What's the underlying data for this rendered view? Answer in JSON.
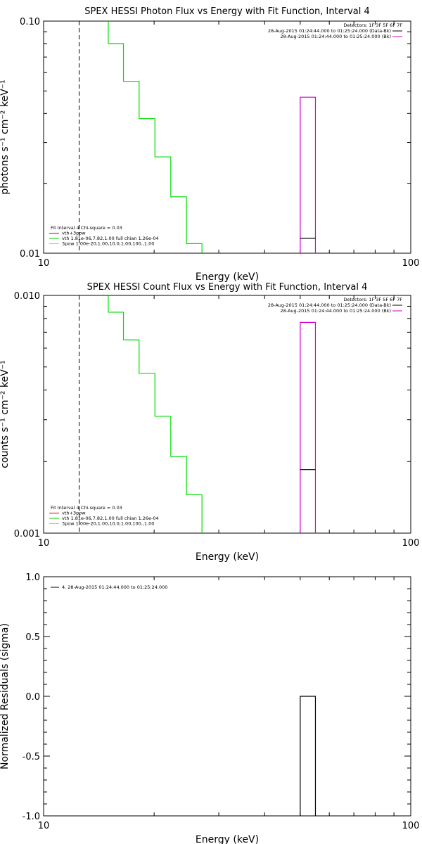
{
  "chart_data": [
    {
      "type": "step",
      "title": "SPEX HESSI Photon Flux vs Energy with Fit Function, Interval 4",
      "xlabel": "Energy (keV)",
      "ylabel": "photons s⁻¹ cm⁻² keV⁻¹",
      "x_scale": "log",
      "y_scale": "log",
      "xlim": [
        10,
        100
      ],
      "ylim": [
        0.01,
        0.1
      ],
      "x_tick_labels": [
        "10",
        "100"
      ],
      "y_tick_labels": [
        "0.01",
        "0.10"
      ],
      "legend_top_right": [
        {
          "text": "Detectors: 1F 3F 5F 6F 7F",
          "color": "#000000",
          "swatch": false
        },
        {
          "text": "28-Aug-2015 01:24:44.000 to 01:25:24.000 (Data-Bk)",
          "color": "#000000",
          "swatch": true
        },
        {
          "text": "28-Aug-2015 01:24:44.000 to 01:25:24.000 (Bk)",
          "color": "#cc00cc",
          "swatch": true
        }
      ],
      "legend_bottom_left": [
        {
          "text": "Fit Interval 4   Chi-square = 0.03",
          "color": "#000000",
          "swatch": false
        },
        {
          "text": "vth+3pow",
          "color": "#cc0000",
          "swatch": true
        },
        {
          "text": "vth 1.81e-06,7.82,1.00  full chian 1.26e-04",
          "color": "#00cc00",
          "swatch": true
        },
        {
          "text": "3pow 1.00e-20,1.00,10.0,1.00,100.,1.00",
          "color": "#cccc00",
          "swatch": true
        }
      ],
      "dashed_line_x": 12.5,
      "series": [
        {
          "color": "#00dd00",
          "style": "step",
          "x_edges": [
            15.0,
            16.5,
            18.2,
            20.1,
            22.2,
            24.5,
            27.0
          ],
          "values": [
            0.08,
            0.055,
            0.038,
            0.026,
            0.0175,
            0.011
          ]
        },
        {
          "color": "#cc00cc",
          "style": "bar",
          "x_edges": [
            50.0,
            55.0
          ],
          "values": [
            0.047
          ]
        },
        {
          "color": "#000000",
          "style": "segment",
          "x_edges": [
            50.0,
            55.0
          ],
          "values": [
            0.0116
          ]
        }
      ]
    },
    {
      "type": "step",
      "title": "SPEX HESSI Count Flux vs Energy with Fit Function, Interval 4",
      "xlabel": "Energy (keV)",
      "ylabel": "counts s⁻¹ cm⁻² keV⁻¹",
      "x_scale": "log",
      "y_scale": "log",
      "xlim": [
        10,
        100
      ],
      "ylim": [
        0.001,
        0.01
      ],
      "x_tick_labels": [
        "10",
        "100"
      ],
      "y_tick_labels": [
        "0.001",
        "0.010"
      ],
      "legend_top_right": [
        {
          "text": "Detectors: 1F 3F 5F 6F 7F",
          "color": "#000000",
          "swatch": false
        },
        {
          "text": "28-Aug-2015 01:24:44.000 to 01:25:24.000 (Data-Bk)",
          "color": "#000000",
          "swatch": true
        },
        {
          "text": "28-Aug-2015 01:24:44.000 to 01:25:24.000 (Bk)",
          "color": "#cc00cc",
          "swatch": true
        }
      ],
      "legend_bottom_left": [
        {
          "text": "Fit Interval 4   Chi-square = 0.03",
          "color": "#000000",
          "swatch": false
        },
        {
          "text": "vth+3pow",
          "color": "#cc0000",
          "swatch": true
        },
        {
          "text": "vth 1.81e-06,7.82,1.00  full chian 1.26e-04",
          "color": "#00cc00",
          "swatch": true
        },
        {
          "text": "3pow 1.00e-20,1.00,10.0,1.00,100.,1.00",
          "color": "#cccc00",
          "swatch": true
        }
      ],
      "dashed_line_x": 12.5,
      "series": [
        {
          "color": "#00dd00",
          "style": "step",
          "x_edges": [
            15.0,
            16.5,
            18.2,
            20.1,
            22.2,
            24.5,
            27.0
          ],
          "values": [
            0.0085,
            0.0065,
            0.0047,
            0.0031,
            0.0021,
            0.00145
          ]
        },
        {
          "color": "#cc00cc",
          "style": "bar",
          "x_edges": [
            50.0,
            55.0
          ],
          "values": [
            0.0077
          ]
        },
        {
          "color": "#000000",
          "style": "segment",
          "x_edges": [
            50.0,
            55.0
          ],
          "values": [
            0.00185
          ]
        }
      ]
    },
    {
      "type": "step",
      "title": "",
      "xlabel": "Energy (keV)",
      "ylabel": "Normalized Residuals (sigma)",
      "x_scale": "log",
      "y_scale": "linear",
      "xlim": [
        10,
        100
      ],
      "ylim": [
        -1.0,
        1.0
      ],
      "x_tick_labels": [
        "10",
        "100"
      ],
      "y_tick_labels": [
        "-1.0",
        "-0.5",
        "0.0",
        "0.5",
        "1.0"
      ],
      "y_ticks": [
        -1.0,
        -0.5,
        0.0,
        0.5,
        1.0
      ],
      "legend_top_right": [],
      "legend_bottom_left": [],
      "legend_top_left": [
        {
          "text": "4. 28-Aug-2015 01:24:44.000 to 01:25:24.000",
          "color": "#000000",
          "swatch": true
        }
      ],
      "series": [
        {
          "color": "#000000",
          "style": "bar",
          "x_edges": [
            50.0,
            55.0
          ],
          "values": [
            0.0
          ],
          "base": -1.0
        }
      ]
    }
  ]
}
